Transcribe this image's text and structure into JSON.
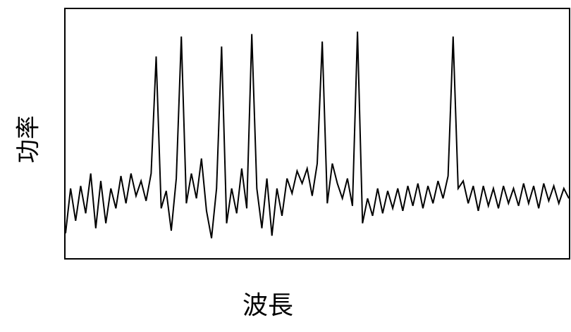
{
  "chart_data": {
    "type": "line",
    "x_label": "波長",
    "y_label": "功率",
    "x": [
      0,
      2,
      4,
      6,
      8,
      10,
      12,
      14,
      16,
      18,
      20,
      22,
      24,
      26,
      28,
      30,
      32,
      34,
      36,
      38,
      40,
      42,
      44,
      46,
      48,
      50,
      52,
      54,
      56,
      58,
      60,
      62,
      64,
      66,
      68,
      70,
      72,
      74,
      76,
      78,
      80,
      82,
      84,
      86,
      88,
      90,
      92,
      94,
      96,
      98,
      100,
      102,
      104,
      106,
      108,
      110,
      112,
      114,
      116,
      118,
      120,
      122,
      124,
      126,
      128,
      130,
      132,
      134,
      136,
      138,
      140,
      142,
      144,
      146,
      148,
      150,
      152,
      154,
      156,
      158,
      160,
      162,
      164,
      166,
      168,
      170,
      172,
      174,
      176,
      178,
      180,
      182,
      184,
      186,
      188,
      190,
      192,
      194,
      196,
      198,
      200
    ],
    "values": [
      10,
      28,
      15,
      29,
      18,
      34,
      12,
      31,
      14,
      28,
      20,
      33,
      22,
      34,
      25,
      31,
      23,
      34,
      81,
      20,
      27,
      11,
      32,
      89,
      22,
      34,
      24,
      40,
      19,
      8,
      28,
      85,
      14,
      28,
      18,
      36,
      20,
      90,
      28,
      12,
      32,
      9,
      28,
      17,
      32,
      26,
      35,
      30,
      36,
      25,
      38,
      87,
      22,
      38,
      30,
      24,
      32,
      21,
      91,
      14,
      24,
      17,
      28,
      18,
      27,
      20,
      28,
      19,
      29,
      21,
      30,
      20,
      29,
      22,
      31,
      24,
      33,
      89,
      28,
      31,
      22,
      29,
      19,
      29,
      21,
      28,
      20,
      29,
      22,
      28,
      21,
      30,
      22,
      29,
      20,
      30,
      23,
      29,
      22,
      28,
      24
    ],
    "color": "#000000",
    "xlim": [
      0,
      200
    ],
    "ylim": [
      0,
      100
    ]
  }
}
